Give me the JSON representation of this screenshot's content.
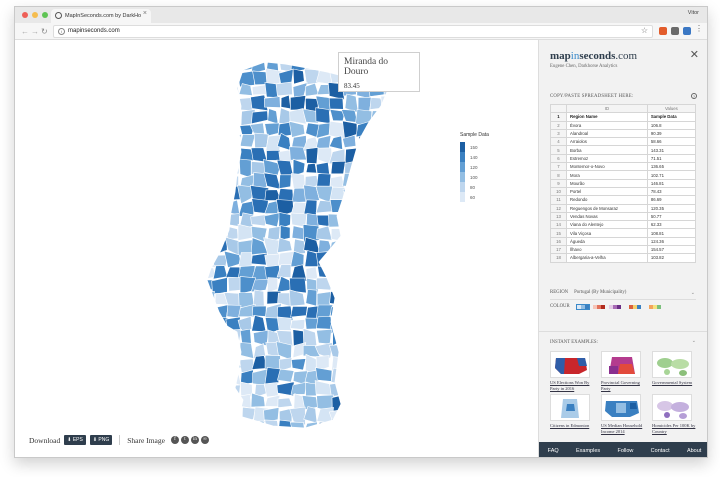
{
  "browser": {
    "tab_title": "MapInSeconds.com by DarkHo",
    "user": "Vitor",
    "url": "mapinseconds.com",
    "light_colors": [
      "#ee5f57",
      "#f5bd4f",
      "#5fc454"
    ]
  },
  "map": {
    "tooltip": {
      "title": "Miranda do Douro",
      "value": "83.45"
    },
    "legend": {
      "title": "Sample Data",
      "items": [
        {
          "label": "150",
          "color": "#1c5fa3"
        },
        {
          "label": "140",
          "color": "#3a80c1"
        },
        {
          "label": "120",
          "color": "#639fd4"
        },
        {
          "label": "100",
          "color": "#93bee3"
        },
        {
          "label": "80",
          "color": "#bed6ee"
        },
        {
          "label": "60",
          "color": "#dde9f6"
        }
      ]
    }
  },
  "toolbar": {
    "download_label": "Download",
    "eps_label": "⬇ EPS",
    "png_label": "⬇ PNG",
    "share_label": "Share Image"
  },
  "panel": {
    "brand": {
      "map": "map",
      "in": "in",
      "seconds": "seconds",
      "com": ".com"
    },
    "byline": "Eugene Chen, Darkhorse Analytics",
    "paste_label": "COPY/PASTE SPREADSHEET HERE:",
    "sheet": {
      "col_headers": [
        "ID",
        "Values"
      ],
      "header_row": [
        "Region Name",
        "Sample Data"
      ],
      "rows": [
        [
          "Évora",
          "106.8"
        ],
        [
          "Alandroal",
          "90.39"
        ],
        [
          "Arraiolos",
          "58.66"
        ],
        [
          "Borba",
          "143.31"
        ],
        [
          "Estremoz",
          "71.51"
        ],
        [
          "Montemor-o-Novo",
          "136.65"
        ],
        [
          "Mora",
          "102.71"
        ],
        [
          "Mourão",
          "146.81"
        ],
        [
          "Portel",
          "78.43"
        ],
        [
          "Redondo",
          "86.69"
        ],
        [
          "Reguengos de Monsaraz",
          "120.35"
        ],
        [
          "Vendas Novas",
          "50.77"
        ],
        [
          "Viana do Alentejo",
          "62.33"
        ],
        [
          "Vila Viçosa",
          "108.81"
        ],
        [
          "Águeda",
          "124.36"
        ],
        [
          "Ílhavo",
          "154.57"
        ],
        [
          "Albergaria-a-Velha",
          "103.82"
        ]
      ]
    },
    "region_label": "REGION",
    "region_value": "Portugal (By Municipality)",
    "colour_label": "COLOUR",
    "instant_label": "INSTANT EXAMPLES:",
    "examples": [
      "US Elections Won By Party in 2016",
      "Provincial Governing Party",
      "Governmental System",
      "Citizens in Edmonton",
      "US Median Household Income 2014",
      "Homicides Per 100K by Country"
    ],
    "footer": [
      "FAQ",
      "Examples",
      "Follow",
      "Contact",
      "About"
    ]
  }
}
